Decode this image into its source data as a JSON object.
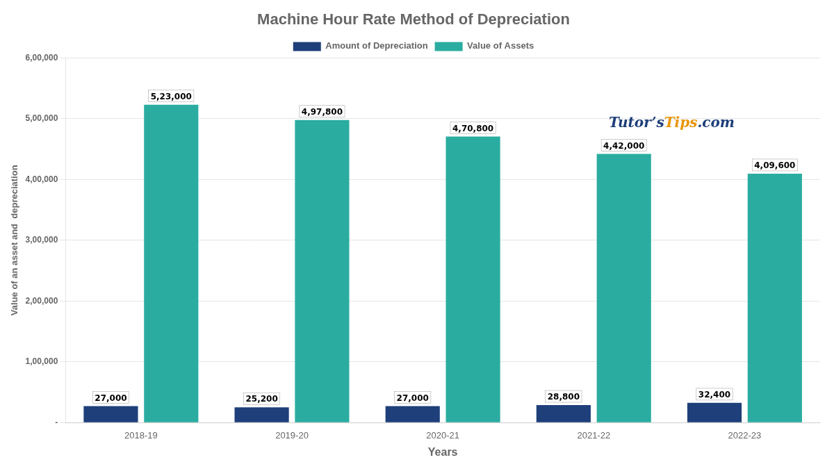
{
  "chart_data": {
    "type": "bar",
    "title": "Machine Hour Rate Method of Depreciation",
    "xlabel": "Years",
    "ylabel": "Value of an asset and  depreciation",
    "categories": [
      "2018-19",
      "2019-20",
      "2020-21",
      "2021-22",
      "2022-23"
    ],
    "series": [
      {
        "name": "Amount of Depreciation",
        "color": "#1e3f7a",
        "values": [
          27000,
          25200,
          27000,
          28800,
          32400
        ],
        "value_labels": [
          "27,000",
          "25,200",
          "27,000",
          "28,800",
          "32,400"
        ]
      },
      {
        "name": "Value of Assets",
        "color": "#2aada0",
        "values": [
          523000,
          497800,
          470800,
          442000,
          409600
        ],
        "value_labels": [
          "5,23,000",
          "4,97,800",
          "4,70,800",
          "4,42,000",
          "4,09,600"
        ]
      }
    ],
    "ylim": [
      0,
      600000
    ],
    "yticks": [
      {
        "value": 0,
        "label": "-"
      },
      {
        "value": 100000,
        "label": "1,00,000"
      },
      {
        "value": 200000,
        "label": "2,00,000"
      },
      {
        "value": 300000,
        "label": "3,00,000"
      },
      {
        "value": 400000,
        "label": "4,00,000"
      },
      {
        "value": 500000,
        "label": "5,00,000"
      },
      {
        "value": 600000,
        "label": "6,00,000"
      }
    ],
    "grid": true,
    "legend": "top",
    "data_labels": true,
    "annotations": [
      {
        "text": "Tutor’s",
        "color": "#1e3f7a"
      },
      {
        "text": "Tips",
        "color": "#e8960a"
      },
      {
        "text": ".com",
        "color": "#1e3f7a"
      }
    ]
  }
}
